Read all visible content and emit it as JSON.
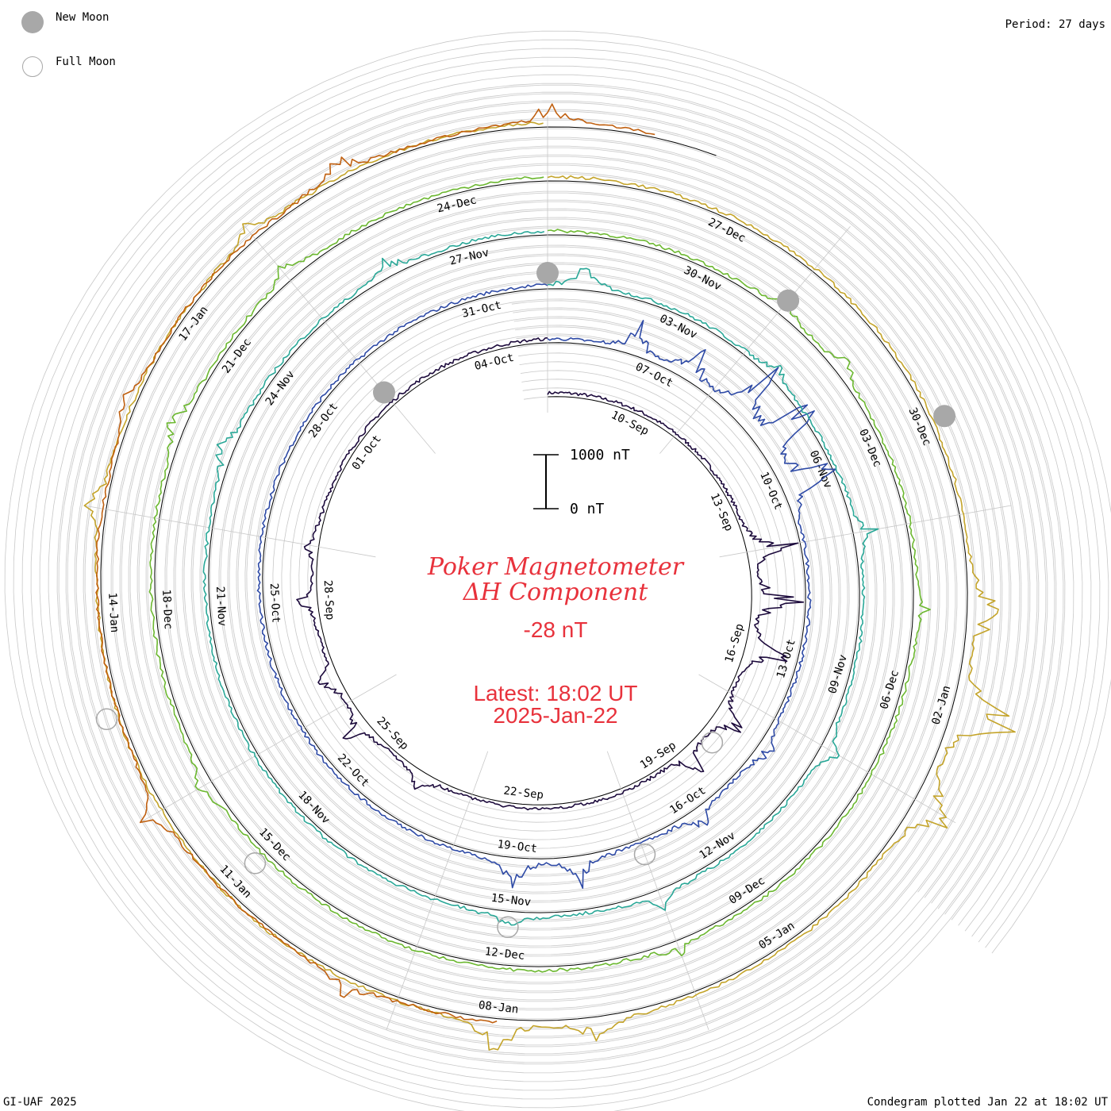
{
  "legend": {
    "new_moon_label": "New Moon",
    "full_moon_label": "Full Moon",
    "new_moon_color": "#a8a8a8",
    "full_moon_color": "#a8a8a8"
  },
  "period_label": "Period: 27 days",
  "footer": {
    "left": "GI-UAF 2025",
    "right": "Condegram plotted Jan 22 at 18:02 UT"
  },
  "title": {
    "line1": "Poker Magnetometer",
    "line2": "ΔH Component",
    "value": "-28 nT",
    "latest": "Latest: 18:02 UT",
    "date": "2025-Jan-22",
    "color": "#e8323c"
  },
  "scale_bar": {
    "top_label": "1000 nT",
    "bottom_label": "0 nT"
  },
  "chart_data": {
    "type": "line",
    "subtype": "spiral condegram",
    "period_days": 27,
    "x_units": "date",
    "y_units": "nT",
    "grid": true,
    "date_labels": [
      "10-Sep",
      "13-Sep",
      "16-Sep",
      "19-Sep",
      "22-Sep",
      "25-Sep",
      "28-Sep",
      "01-Oct",
      "04-Oct",
      "07-Oct",
      "10-Oct",
      "13-Oct",
      "16-Oct",
      "19-Oct",
      "22-Oct",
      "25-Oct",
      "28-Oct",
      "31-Oct",
      "03-Nov",
      "06-Nov",
      "09-Nov",
      "12-Nov",
      "15-Nov",
      "18-Nov",
      "21-Nov",
      "24-Nov",
      "27-Nov",
      "30-Nov",
      "03-Dec",
      "06-Dec",
      "09-Dec",
      "12-Dec",
      "15-Dec",
      "18-Dec",
      "21-Dec",
      "24-Dec",
      "27-Dec",
      "30-Dec",
      "02-Jan",
      "05-Jan",
      "08-Jan",
      "11-Jan",
      "14-Jan",
      "17-Jan"
    ],
    "segments": [
      {
        "start": "2024-09-08",
        "end": "2024-10-05",
        "color": "#1c0a3c",
        "spikes": [
          {
            "day": 6,
            "amp": 700
          },
          {
            "day": 7,
            "amp": 900
          },
          {
            "day": 8,
            "amp": 750
          },
          {
            "day": 9.5,
            "amp": 650
          },
          {
            "day": 10.5,
            "amp": 500
          },
          {
            "day": 16,
            "amp": 300
          },
          {
            "day": 17.5,
            "amp": 450
          },
          {
            "day": 18.5,
            "amp": 420
          },
          {
            "day": 20,
            "amp": 300
          },
          {
            "day": 21,
            "amp": 250
          }
        ]
      },
      {
        "start": "2024-10-05",
        "end": "2024-11-01",
        "color": "#2e4aa6",
        "spikes": [
          {
            "day": 1.5,
            "amp": 550
          },
          {
            "day": 2.5,
            "amp": 700
          },
          {
            "day": 3.5,
            "amp": 1200
          },
          {
            "day": 4.2,
            "amp": 1500
          },
          {
            "day": 5,
            "amp": 1300
          },
          {
            "day": 9.5,
            "amp": 250
          },
          {
            "day": 11,
            "amp": 350
          },
          {
            "day": 13,
            "amp": 450
          },
          {
            "day": 14,
            "amp": 500
          }
        ]
      },
      {
        "start": "2024-11-01",
        "end": "2024-11-28",
        "color": "#2aa898",
        "spikes": [
          {
            "day": 0.5,
            "amp": 400
          },
          {
            "day": 3.5,
            "amp": 250
          },
          {
            "day": 6,
            "amp": 300
          },
          {
            "day": 9,
            "amp": 350
          },
          {
            "day": 12,
            "amp": 250
          },
          {
            "day": 14,
            "amp": 250
          },
          {
            "day": 22,
            "amp": 300
          },
          {
            "day": 25,
            "amp": 250
          }
        ]
      },
      {
        "start": "2024-11-28",
        "end": "2024-12-25",
        "color": "#6cb830",
        "spikes": [
          {
            "day": 3,
            "amp": 200
          },
          {
            "day": 4,
            "amp": 250
          },
          {
            "day": 7,
            "amp": 200
          },
          {
            "day": 12,
            "amp": 200
          },
          {
            "day": 18,
            "amp": 250
          },
          {
            "day": 22,
            "amp": 300
          },
          {
            "day": 24,
            "amp": 250
          }
        ]
      },
      {
        "start": "2024-12-25",
        "end": "2025-01-21",
        "color": "#c4a42a",
        "spikes": [
          {
            "day": 7,
            "amp": 700
          },
          {
            "day": 8,
            "amp": 1200
          },
          {
            "day": 9,
            "amp": 900
          },
          {
            "day": 13,
            "amp": 450
          },
          {
            "day": 14,
            "amp": 600
          },
          {
            "day": 21,
            "amp": 350
          },
          {
            "day": 24,
            "amp": 300
          }
        ]
      },
      {
        "start": "2025-01-08",
        "end": "2025-01-22",
        "color": "#c06010",
        "spikes": [
          {
            "day": 1.5,
            "amp": 300
          },
          {
            "day": 4,
            "amp": 350
          },
          {
            "day": 8,
            "amp": 250
          },
          {
            "day": 11,
            "amp": 400
          },
          {
            "day": 13,
            "amp": 350
          }
        ]
      }
    ],
    "new_moons": [
      "2024-10-02",
      "2024-11-01",
      "2024-12-01",
      "2024-12-30"
    ],
    "full_moons": [
      "2024-09-18",
      "2024-10-17",
      "2024-11-15",
      "2024-12-15",
      "2025-01-13"
    ]
  }
}
